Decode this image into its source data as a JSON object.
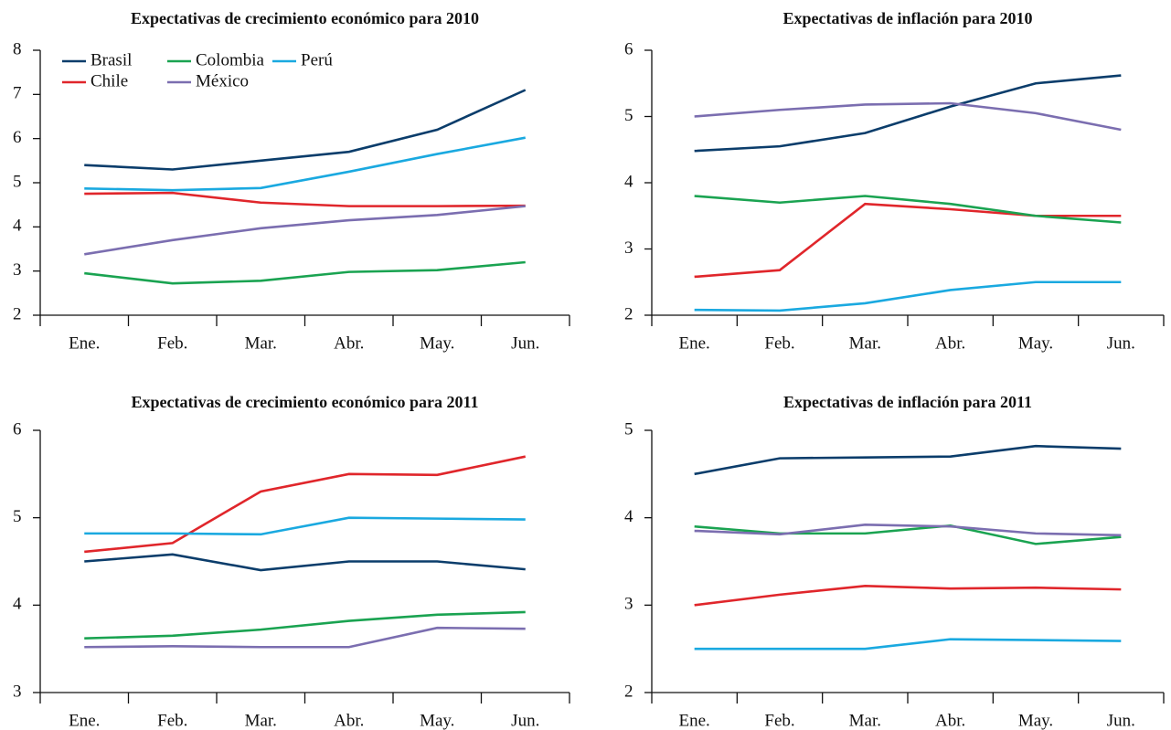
{
  "chart_data": [
    {
      "type": "line",
      "title": "Expectativas de crecimiento económico para 2010",
      "categories": [
        "Ene.",
        "Feb.",
        "Mar.",
        "Abr.",
        "May.",
        "Jun."
      ],
      "ylim": [
        2,
        8
      ],
      "yticks": [
        2,
        3,
        4,
        5,
        6,
        7,
        8
      ],
      "legend": "top-left",
      "series": [
        {
          "name": "Brasil",
          "color": "#0b3d6b",
          "values": [
            5.4,
            5.3,
            5.5,
            5.7,
            6.2,
            7.1
          ]
        },
        {
          "name": "Chile",
          "color": "#e0262b",
          "values": [
            4.75,
            4.77,
            4.55,
            4.47,
            4.47,
            4.48
          ]
        },
        {
          "name": "Colombia",
          "color": "#1aa351",
          "values": [
            2.95,
            2.72,
            2.78,
            2.98,
            3.02,
            3.2
          ]
        },
        {
          "name": "México",
          "color": "#7b6eb0",
          "values": [
            3.38,
            3.7,
            3.97,
            4.15,
            4.27,
            4.47
          ]
        },
        {
          "name": "Perú",
          "color": "#1aa9e0",
          "values": [
            4.87,
            4.83,
            4.88,
            5.25,
            5.65,
            6.02
          ]
        }
      ]
    },
    {
      "type": "line",
      "title": "Expectativas de inflación para 2010",
      "categories": [
        "Ene.",
        "Feb.",
        "Mar.",
        "Abr.",
        "May.",
        "Jun."
      ],
      "ylim": [
        2,
        6
      ],
      "yticks": [
        2,
        3,
        4,
        5,
        6
      ],
      "series": [
        {
          "color": "#0b3d6b",
          "values": [
            4.48,
            4.55,
            4.75,
            5.15,
            5.5,
            5.62
          ]
        },
        {
          "color": "#e0262b",
          "values": [
            2.58,
            2.68,
            3.68,
            3.6,
            3.5,
            3.5
          ]
        },
        {
          "color": "#1aa351",
          "values": [
            3.8,
            3.7,
            3.8,
            3.68,
            3.5,
            3.4
          ]
        },
        {
          "color": "#7b6eb0",
          "values": [
            5.0,
            5.1,
            5.18,
            5.2,
            5.05,
            4.8
          ]
        },
        {
          "color": "#1aa9e0",
          "values": [
            2.08,
            2.07,
            2.18,
            2.38,
            2.5,
            2.5
          ]
        }
      ]
    },
    {
      "type": "line",
      "title": "Expectativas de crecimiento económico para 2011",
      "categories": [
        "Ene.",
        "Feb.",
        "Mar.",
        "Abr.",
        "May.",
        "Jun."
      ],
      "ylim": [
        3,
        6
      ],
      "yticks": [
        3,
        4,
        5,
        6
      ],
      "series": [
        {
          "color": "#0b3d6b",
          "values": [
            4.5,
            4.58,
            4.4,
            4.5,
            4.5,
            4.41
          ]
        },
        {
          "color": "#e0262b",
          "values": [
            4.61,
            4.71,
            5.3,
            5.5,
            5.49,
            5.7
          ]
        },
        {
          "color": "#1aa351",
          "values": [
            3.62,
            3.65,
            3.72,
            3.82,
            3.89,
            3.92
          ]
        },
        {
          "color": "#7b6eb0",
          "values": [
            3.52,
            3.53,
            3.52,
            3.52,
            3.74,
            3.73
          ]
        },
        {
          "color": "#1aa9e0",
          "values": [
            4.82,
            4.82,
            4.81,
            5.0,
            4.99,
            4.98
          ]
        }
      ]
    },
    {
      "type": "line",
      "title": "Expectativas de inflación para 2011",
      "categories": [
        "Ene.",
        "Feb.",
        "Mar.",
        "Abr.",
        "May.",
        "Jun."
      ],
      "ylim": [
        2,
        5
      ],
      "yticks": [
        2,
        3,
        4,
        5
      ],
      "series": [
        {
          "color": "#0b3d6b",
          "values": [
            4.5,
            4.68,
            4.69,
            4.7,
            4.82,
            4.79
          ]
        },
        {
          "color": "#e0262b",
          "values": [
            3.0,
            3.12,
            3.22,
            3.19,
            3.2,
            3.18
          ]
        },
        {
          "color": "#1aa351",
          "values": [
            3.9,
            3.82,
            3.82,
            3.91,
            3.7,
            3.78
          ]
        },
        {
          "color": "#7b6eb0",
          "values": [
            3.85,
            3.81,
            3.92,
            3.9,
            3.82,
            3.8
          ]
        },
        {
          "color": "#1aa9e0",
          "values": [
            2.5,
            2.5,
            2.5,
            2.61,
            2.6,
            2.59
          ]
        }
      ]
    }
  ]
}
